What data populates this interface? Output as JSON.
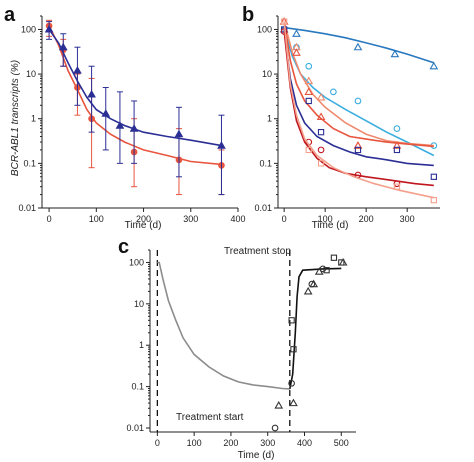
{
  "chart_data": [
    {
      "panel": "a",
      "type": "line",
      "ylabel": "BCR-ABL1 transcripts (%)",
      "xlabel": "Time (d)",
      "xlim": [
        -15,
        400
      ],
      "ylim": [
        0.01,
        200
      ],
      "yscale": "log",
      "xticks": [
        "0",
        "100",
        "200",
        "300",
        "400"
      ],
      "yticks": [
        "0.01",
        "0.1",
        "1",
        "10",
        "100"
      ],
      "series": [
        {
          "color": "#e8553e",
          "marker": "circle",
          "points": [
            [
              0,
              120
            ],
            [
              30,
              35
            ],
            [
              60,
              5
            ],
            [
              90,
              1.0
            ],
            [
              180,
              0.18
            ],
            [
              275,
              0.12
            ],
            [
              365,
              0.09
            ]
          ],
          "err_low": [
            70,
            15,
            1.2,
            0.08,
            0.03,
            0.02,
            0.02
          ],
          "err_high": [
            160,
            60,
            10,
            8,
            1.0,
            0.6,
            0.2
          ],
          "line": [
            [
              0,
              120
            ],
            [
              20,
              45
            ],
            [
              40,
              12
            ],
            [
              60,
              4.5
            ],
            [
              80,
              1.6
            ],
            [
              100,
              0.8
            ],
            [
              130,
              0.45
            ],
            [
              160,
              0.3
            ],
            [
              200,
              0.2
            ],
            [
              250,
              0.15
            ],
            [
              300,
              0.11
            ],
            [
              365,
              0.095
            ]
          ]
        },
        {
          "color": "#2b2f95",
          "marker": "triangle",
          "points": [
            [
              0,
              100
            ],
            [
              30,
              40
            ],
            [
              60,
              12
            ],
            [
              90,
              3.5
            ],
            [
              120,
              1.3
            ],
            [
              150,
              0.7
            ],
            [
              180,
              0.6
            ],
            [
              275,
              0.45
            ],
            [
              365,
              0.25
            ]
          ],
          "err_low": [
            60,
            15,
            2,
            0.5,
            0.2,
            0.1,
            0.1,
            0.05,
            0.02
          ],
          "err_high": [
            150,
            80,
            40,
            15,
            5,
            4,
            2.5,
            1.8,
            1.2
          ],
          "line": [
            [
              0,
              100
            ],
            [
              20,
              50
            ],
            [
              40,
              18
            ],
            [
              60,
              7
            ],
            [
              80,
              3
            ],
            [
              100,
              1.6
            ],
            [
              130,
              1.0
            ],
            [
              160,
              0.7
            ],
            [
              200,
              0.5
            ],
            [
              250,
              0.4
            ],
            [
              300,
              0.33
            ],
            [
              365,
              0.25
            ]
          ]
        }
      ]
    },
    {
      "panel": "b",
      "type": "line",
      "xlabel": "Time (d)",
      "xlim": [
        -15,
        380
      ],
      "ylim": [
        0.01,
        200
      ],
      "yscale": "log",
      "xticks": [
        "0",
        "100",
        "200",
        "300"
      ],
      "yticks": [
        "0.01",
        "0.1",
        "1",
        "10",
        "100"
      ],
      "series": [
        {
          "color": "#2878be",
          "marker": "triangle",
          "points": [
            [
              0,
              100
            ],
            [
              30,
              80
            ],
            [
              180,
              40
            ],
            [
              270,
              28
            ],
            [
              365,
              15
            ]
          ],
          "line": [
            [
              0,
              110
            ],
            [
              50,
              95
            ],
            [
              100,
              80
            ],
            [
              150,
              65
            ],
            [
              200,
              50
            ],
            [
              250,
              38
            ],
            [
              300,
              28
            ],
            [
              365,
              18
            ]
          ]
        },
        {
          "color": "#3aaee0",
          "marker": "circle",
          "points": [
            [
              0,
              100
            ],
            [
              30,
              40
            ],
            [
              60,
              15
            ],
            [
              120,
              4
            ],
            [
              180,
              2.5
            ],
            [
              275,
              0.6
            ],
            [
              365,
              0.25
            ]
          ],
          "line": [
            [
              0,
              100
            ],
            [
              20,
              25
            ],
            [
              40,
              10
            ],
            [
              70,
              5
            ],
            [
              100,
              3
            ],
            [
              150,
              1.6
            ],
            [
              200,
              0.9
            ],
            [
              250,
              0.5
            ],
            [
              300,
              0.3
            ],
            [
              365,
              0.15
            ]
          ]
        },
        {
          "color": "#f08a6e",
          "marker": "triangle",
          "points": [
            [
              0,
              150
            ],
            [
              30,
              40
            ],
            [
              60,
              7
            ],
            [
              90,
              3
            ],
            [
              180,
              0.25
            ]
          ],
          "line": [
            [
              0,
              150
            ],
            [
              20,
              30
            ],
            [
              40,
              10
            ],
            [
              70,
              3.5
            ],
            [
              100,
              1.8
            ],
            [
              150,
              0.8
            ],
            [
              200,
              0.45
            ],
            [
              250,
              0.32
            ],
            [
              300,
              0.28
            ],
            [
              365,
              0.25
            ]
          ]
        },
        {
          "color": "#e8553e",
          "marker": "triangle",
          "points": [
            [
              0,
              150
            ],
            [
              30,
              30
            ],
            [
              60,
              4
            ],
            [
              90,
              1.1
            ],
            [
              180,
              0.25
            ],
            [
              275,
              0.25
            ]
          ],
          "line": [
            [
              0,
              150
            ],
            [
              15,
              20
            ],
            [
              30,
              6
            ],
            [
              50,
              2.5
            ],
            [
              80,
              1.2
            ],
            [
              120,
              0.6
            ],
            [
              160,
              0.4
            ],
            [
              200,
              0.35
            ],
            [
              250,
              0.3
            ],
            [
              300,
              0.27
            ],
            [
              365,
              0.24
            ]
          ]
        },
        {
          "color": "#2b2f95",
          "marker": "square",
          "points": [
            [
              0,
              100
            ],
            [
              60,
              2.5
            ],
            [
              90,
              0.5
            ],
            [
              180,
              0.2
            ],
            [
              275,
              0.2
            ],
            [
              365,
              0.05
            ]
          ],
          "line": [
            [
              0,
              100
            ],
            [
              15,
              8
            ],
            [
              30,
              2
            ],
            [
              50,
              0.8
            ],
            [
              80,
              0.4
            ],
            [
              120,
              0.25
            ],
            [
              160,
              0.18
            ],
            [
              200,
              0.14
            ],
            [
              250,
              0.12
            ],
            [
              300,
              0.1
            ],
            [
              365,
              0.09
            ]
          ]
        },
        {
          "color": "#c0161e",
          "marker": "circle",
          "points": [
            [
              0,
              90
            ],
            [
              60,
              0.3
            ],
            [
              90,
              0.2
            ],
            [
              180,
              0.055
            ],
            [
              275,
              0.035
            ]
          ],
          "line": [
            [
              0,
              90
            ],
            [
              15,
              5
            ],
            [
              30,
              0.9
            ],
            [
              50,
              0.3
            ],
            [
              80,
              0.13
            ],
            [
              110,
              0.08
            ],
            [
              150,
              0.06
            ],
            [
              200,
              0.05
            ],
            [
              260,
              0.042
            ],
            [
              320,
              0.035
            ],
            [
              365,
              0.032
            ]
          ]
        },
        {
          "color": "#f4a08c",
          "marker": "square",
          "points": [
            [
              0,
              150
            ],
            [
              60,
              0.2
            ],
            [
              90,
              0.1
            ],
            [
              275,
              0.03
            ],
            [
              365,
              0.015
            ]
          ],
          "line": [
            [
              0,
              150
            ],
            [
              15,
              6
            ],
            [
              30,
              1.2
            ],
            [
              50,
              0.35
            ],
            [
              80,
              0.15
            ],
            [
              120,
              0.08
            ],
            [
              170,
              0.05
            ],
            [
              220,
              0.035
            ],
            [
              280,
              0.025
            ],
            [
              365,
              0.017
            ]
          ]
        }
      ]
    },
    {
      "panel": "c",
      "type": "line",
      "xlabel": "Time (d)",
      "xlim": [
        -20,
        540
      ],
      "ylim": [
        0.008,
        200
      ],
      "yscale": "log",
      "xticks": [
        "0",
        "100",
        "200",
        "300",
        "400",
        "500"
      ],
      "yticks": [
        "0.01",
        "0.1",
        "1",
        "10",
        "100"
      ],
      "annotations": [
        {
          "text": "Treatment stop",
          "x": 312,
          "y": 150
        },
        {
          "text": "Treatment start",
          "x": 15,
          "y": 0.0085
        }
      ],
      "vlines": [
        0,
        360
      ],
      "series": [
        {
          "color": "#8c8c8c",
          "marker": "none",
          "line": [
            [
              0,
              100
            ],
            [
              5,
              100
            ],
            [
              15,
              40
            ],
            [
              30,
              12
            ],
            [
              50,
              4
            ],
            [
              70,
              1.5
            ],
            [
              100,
              0.6
            ],
            [
              140,
              0.3
            ],
            [
              180,
              0.18
            ],
            [
              220,
              0.13
            ],
            [
              260,
              0.11
            ],
            [
              300,
              0.1
            ],
            [
              340,
              0.09
            ],
            [
              360,
              0.088
            ]
          ]
        },
        {
          "color": "#111111",
          "marker": "none",
          "line": [
            [
              360,
              0.088
            ],
            [
              368,
              0.2
            ],
            [
              375,
              2
            ],
            [
              380,
              15
            ],
            [
              385,
              45
            ],
            [
              395,
              65
            ],
            [
              450,
              70
            ],
            [
              500,
              72
            ]
          ]
        },
        {
          "color": "#333333",
          "marker": "open",
          "points": [
            [
              365,
              4
            ],
            [
              370,
              0.8
            ],
            [
              375,
              0.12
            ],
            [
              440,
              100
            ],
            [
              460,
              70
            ],
            [
              480,
              140
            ],
            [
              500,
              100
            ],
            [
              340,
              0.03
            ]
          ],
          "triangles": [
            [
              330,
              0.035
            ],
            [
              370,
              0.04
            ],
            [
              410,
              20
            ],
            [
              425,
              30
            ],
            [
              440,
              60
            ],
            [
              505,
              100
            ]
          ],
          "circles": [
            [
              320,
              0.01
            ],
            [
              365,
              0.12
            ],
            [
              420,
              30
            ],
            [
              450,
              70
            ]
          ],
          "squares": [
            [
              365,
              4
            ],
            [
              370,
              0.8
            ],
            [
              460,
              65
            ],
            [
              480,
              130
            ],
            [
              500,
              100
            ]
          ]
        }
      ]
    }
  ]
}
